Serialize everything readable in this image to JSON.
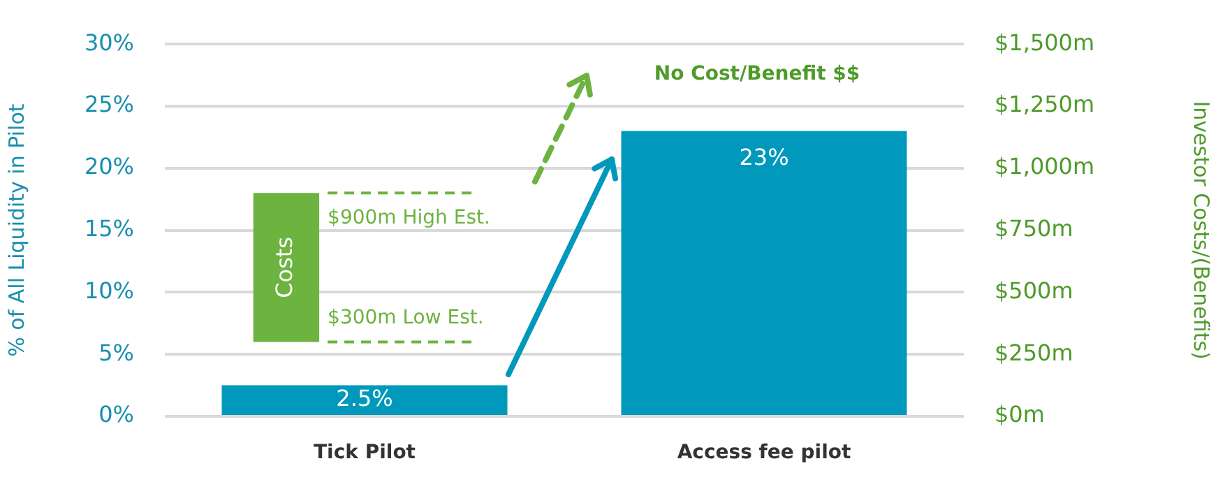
{
  "chart_data": {
    "type": "bar",
    "categories": [
      "Tick Pilot",
      "Access fee pilot"
    ],
    "series": [
      {
        "color": "#0099bb",
        "values": [
          2.5,
          23
        ],
        "value_labels": [
          "2.5%",
          "23%"
        ]
      },
      {
        "name": "Costs",
        "color": "#6db33f",
        "axis": "y2",
        "values": [
          600,
          null
        ],
        "base": [
          300,
          null
        ]
      }
    ],
    "ylabel": "% of All Liquidity in Pilot",
    "y2label": "Investor Costs/(Benefits)",
    "ylim": [
      0,
      30
    ],
    "yticks": [
      {
        "value": 0,
        "label": "0%"
      },
      {
        "value": 5,
        "label": "5%"
      },
      {
        "value": 10,
        "label": "10%"
      },
      {
        "value": 15,
        "label": "15%"
      },
      {
        "value": 20,
        "label": "20%"
      },
      {
        "value": 25,
        "label": "25%"
      },
      {
        "value": 30,
        "label": "30%"
      }
    ],
    "y2lim": [
      0,
      1500
    ],
    "y2ticks": [
      {
        "value": 0,
        "label": "$0m"
      },
      {
        "value": 250,
        "label": "$250m"
      },
      {
        "value": 500,
        "label": "$500m"
      },
      {
        "value": 750,
        "label": "$750m"
      },
      {
        "value": 1000,
        "label": "$1,000m"
      },
      {
        "value": 1250,
        "label": "$1,250m"
      },
      {
        "value": 1500,
        "label": "$1,500m"
      }
    ],
    "ref_lines": [
      {
        "axis": "y2",
        "value": 900,
        "label": "$900m High Est.",
        "color": "#6db33f",
        "line_style": "dashed"
      },
      {
        "axis": "y2",
        "value": 300,
        "label": "$300m Low Est.",
        "color": "#6db33f",
        "line_style": "dashed"
      }
    ],
    "annotations": [
      "No Cost/Benefit $$"
    ],
    "grid": "y",
    "legend": false
  }
}
